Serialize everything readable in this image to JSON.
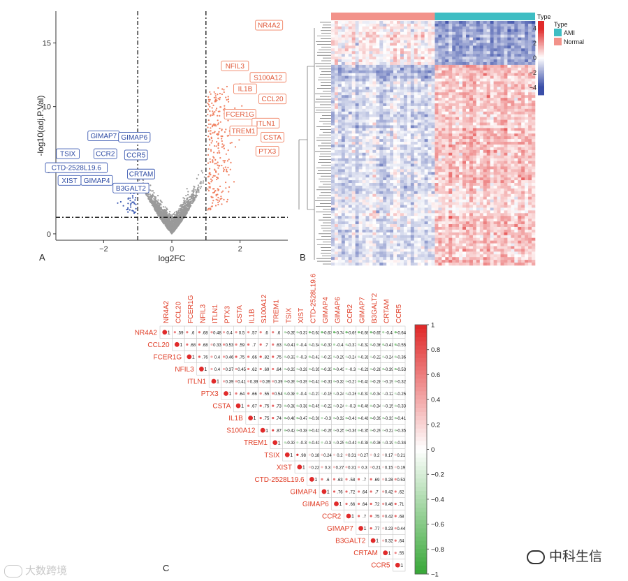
{
  "panels": {
    "a": "A",
    "b": "B",
    "c": "C"
  },
  "watermark_left": "大数跨境",
  "watermark_right": "中科生信",
  "chart_data": [
    {
      "type": "scatter",
      "panel": "A",
      "xlabel": "log2FC",
      "ylabel": "-log10(adj.P.Val)",
      "xlim": [
        -3.4,
        3.4
      ],
      "ylim": [
        -0.5,
        17.5
      ],
      "xticks": [
        -2,
        0,
        2
      ],
      "yticks": [
        0,
        5,
        10,
        15
      ],
      "thresholds": {
        "log2fc": [
          -1,
          1
        ],
        "neglog10p": 1.3
      },
      "colors": {
        "up": "#f08060",
        "down": "#3d5bb3",
        "ns": "#9a9a9a"
      },
      "up_labels": [
        {
          "text": "NR4A2",
          "x": 2.85,
          "y": 16.4
        },
        {
          "text": "NFIL3",
          "x": 1.85,
          "y": 13.2
        },
        {
          "text": "S100A12",
          "x": 2.82,
          "y": 12.3
        },
        {
          "text": "IL1B",
          "x": 2.15,
          "y": 11.4
        },
        {
          "text": "CCL20",
          "x": 2.95,
          "y": 10.6
        },
        {
          "text": "FCER1G",
          "x": 2.0,
          "y": 9.4
        },
        {
          "text": "ITLN1",
          "x": 2.75,
          "y": 8.7
        },
        {
          "text": "TREM1",
          "x": 2.1,
          "y": 8.1
        },
        {
          "text": "CSTA",
          "x": 2.95,
          "y": 7.6
        },
        {
          "text": "PTX3",
          "x": 2.8,
          "y": 6.5
        }
      ],
      "down_labels": [
        {
          "text": "GIMAP7",
          "x": -2.0,
          "y": 7.7
        },
        {
          "text": "GIMAP6",
          "x": -1.1,
          "y": 7.6
        },
        {
          "text": "TSIX",
          "x": -3.05,
          "y": 6.3
        },
        {
          "text": "CCR2",
          "x": -1.95,
          "y": 6.3
        },
        {
          "text": "CCR5",
          "x": -1.05,
          "y": 6.2
        },
        {
          "text": "CTD-2528L19.6",
          "x": -2.8,
          "y": 5.2
        },
        {
          "text": "CRTAM",
          "x": -0.9,
          "y": 4.7
        },
        {
          "text": "XIST",
          "x": -3.0,
          "y": 4.2
        },
        {
          "text": "GIMAP4",
          "x": -2.2,
          "y": 4.2
        },
        {
          "text": "B3GALT2",
          "x": -1.2,
          "y": 3.6
        }
      ]
    },
    {
      "type": "heatmap",
      "panel": "B",
      "annotation_title": "Type",
      "groups": [
        {
          "name": "Normal",
          "color": "#f2928a",
          "samples": 30
        },
        {
          "name": "AMI",
          "color": "#3ebdc3",
          "samples": 29
        }
      ],
      "legend_order": [
        "AMI",
        "Normal"
      ],
      "scale": {
        "min": -5,
        "max": 5,
        "ticks": [
          4,
          2,
          0,
          -2,
          -4
        ]
      },
      "colors": {
        "low": "#3a4ea8",
        "mid": "#ffffff",
        "high": "#e02a2a"
      },
      "blocks": [
        {
          "rows": 16,
          "normal_mean": 0.35,
          "ami_mean": -1.6
        },
        {
          "rows": 5,
          "normal_mean": -1.2,
          "ami_mean": 0.9
        },
        {
          "rows": 42,
          "normal_mean": -0.55,
          "ami_mean": 0.75
        },
        {
          "rows": 8,
          "normal_mean": -0.3,
          "ami_mean": 0.3
        },
        {
          "rows": 18,
          "normal_mean": -0.5,
          "ami_mean": 0.8
        }
      ]
    },
    {
      "type": "heatmap",
      "subtype": "correlation-matrix-upper",
      "panel": "C",
      "genes": [
        "NR4A2",
        "CCL20",
        "FCER1G",
        "NFIL3",
        "ITLN1",
        "PTX3",
        "CSTA",
        "IL1B",
        "S100A12",
        "TREM1",
        "TSIX",
        "XIST",
        "CTD-2528L19.6",
        "GIMAP4",
        "GIMAP6",
        "CCR2",
        "GIMAP7",
        "B3GALT2",
        "CRTAM",
        "CCR5"
      ],
      "matrix": [
        [
          1,
          0.59,
          0.6,
          0.68,
          0.48,
          0.4,
          0.5,
          0.57,
          0.6,
          0.6,
          -0.35,
          -0.37,
          -0.63,
          -0.67,
          -0.74,
          -0.69,
          -0.66,
          -0.65,
          -0.4,
          -0.64
        ],
        [
          null,
          1,
          0.68,
          0.68,
          0.33,
          0.53,
          0.59,
          0.7,
          0.7,
          0.63,
          -0.41,
          -0.4,
          -0.34,
          -0.37,
          -0.4,
          -0.37,
          -0.32,
          -0.36,
          -0.41,
          -0.55
        ],
        [
          null,
          null,
          1,
          0.76,
          0.4,
          0.46,
          0.75,
          0.66,
          0.82,
          0.75,
          -0.33,
          -0.3,
          -0.42,
          -0.23,
          -0.29,
          -0.24,
          -0.31,
          -0.22,
          -0.24,
          -0.36
        ],
        [
          null,
          null,
          null,
          1,
          0.4,
          0.37,
          0.45,
          0.62,
          0.69,
          0.64,
          -0.33,
          -0.28,
          -0.35,
          -0.33,
          -0.43,
          -0.3,
          -0.21,
          -0.28,
          -0.39,
          -0.53
        ],
        [
          null,
          null,
          null,
          null,
          1,
          0.39,
          0.41,
          0.39,
          0.39,
          0.39,
          -0.39,
          -0.39,
          -0.41,
          -0.31,
          -0.33,
          -0.27,
          -0.43,
          -0.28,
          -0.19,
          -0.32
        ],
        [
          null,
          null,
          null,
          null,
          null,
          1,
          0.64,
          0.66,
          0.55,
          0.54,
          -0.38,
          -0.4,
          -0.27,
          -0.15,
          -0.24,
          -0.26,
          -0.37,
          -0.34,
          -0.12,
          -0.25
        ],
        [
          null,
          null,
          null,
          null,
          null,
          null,
          1,
          0.67,
          0.75,
          0.73,
          -0.38,
          -0.38,
          -0.45,
          -0.22,
          -0.24,
          -0.3,
          -0.46,
          -0.34,
          -0.15,
          -0.33
        ],
        [
          null,
          null,
          null,
          null,
          null,
          null,
          null,
          1,
          0.75,
          0.74,
          -0.48,
          -0.47,
          -0.38,
          -0.3,
          -0.32,
          -0.41,
          -0.41,
          -0.39,
          -0.33,
          -0.41
        ],
        [
          null,
          null,
          null,
          null,
          null,
          null,
          null,
          null,
          1,
          0.87,
          -0.42,
          -0.38,
          -0.41,
          -0.26,
          -0.25,
          -0.36,
          -0.35,
          -0.29,
          -0.22,
          -0.35
        ],
        [
          null,
          null,
          null,
          null,
          null,
          null,
          null,
          null,
          null,
          1,
          -0.33,
          -0.3,
          -0.41,
          -0.3,
          -0.25,
          -0.41,
          -0.38,
          -0.36,
          -0.19,
          -0.34
        ],
        [
          null,
          null,
          null,
          null,
          null,
          null,
          null,
          null,
          null,
          null,
          1,
          0.98,
          0.18,
          0.24,
          0.2,
          0.31,
          0.27,
          0.2,
          0.17,
          0.21
        ],
        [
          null,
          null,
          null,
          null,
          null,
          null,
          null,
          null,
          null,
          null,
          null,
          1,
          0.22,
          0.3,
          0.27,
          0.31,
          0.3,
          0.21,
          0.15,
          0.19
        ],
        [
          null,
          null,
          null,
          null,
          null,
          null,
          null,
          null,
          null,
          null,
          null,
          null,
          1,
          0.6,
          0.63,
          0.58,
          0.7,
          0.69,
          0.28,
          0.53
        ],
        [
          null,
          null,
          null,
          null,
          null,
          null,
          null,
          null,
          null,
          null,
          null,
          null,
          null,
          1,
          0.76,
          0.72,
          0.64,
          0.7,
          0.42,
          0.62
        ],
        [
          null,
          null,
          null,
          null,
          null,
          null,
          null,
          null,
          null,
          null,
          null,
          null,
          null,
          null,
          1,
          0.66,
          0.64,
          0.72,
          0.46,
          0.71
        ],
        [
          null,
          null,
          null,
          null,
          null,
          null,
          null,
          null,
          null,
          null,
          null,
          null,
          null,
          null,
          null,
          1,
          0.7,
          0.75,
          0.42,
          0.68
        ],
        [
          null,
          null,
          null,
          null,
          null,
          null,
          null,
          null,
          null,
          null,
          null,
          null,
          null,
          null,
          null,
          null,
          1,
          0.77,
          0.23,
          0.44
        ],
        [
          null,
          null,
          null,
          null,
          null,
          null,
          null,
          null,
          null,
          null,
          null,
          null,
          null,
          null,
          null,
          null,
          null,
          1,
          0.32,
          0.64
        ],
        [
          null,
          null,
          null,
          null,
          null,
          null,
          null,
          null,
          null,
          null,
          null,
          null,
          null,
          null,
          null,
          null,
          null,
          null,
          1,
          0.55
        ],
        [
          null,
          null,
          null,
          null,
          null,
          null,
          null,
          null,
          null,
          null,
          null,
          null,
          null,
          null,
          null,
          null,
          null,
          null,
          null,
          1
        ]
      ],
      "colorbar_ticks": [
        1,
        0.8,
        0.6,
        0.4,
        0.2,
        0,
        -0.2,
        -0.4,
        -0.6,
        -0.8,
        -1
      ],
      "colors": {
        "pos": "#e02a2a",
        "neg": "#3aa83a",
        "mid": "#ffffff",
        "label": "#e0402a"
      }
    }
  ]
}
